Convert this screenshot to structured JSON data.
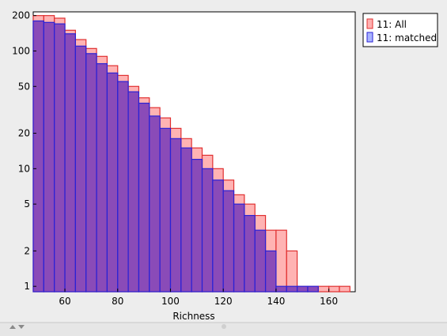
{
  "colors": {
    "all_fill": "#ff9a9a",
    "all_stroke": "#e03030",
    "matched_fill": "#7d3fb8",
    "matched_stroke": "#2a22d6",
    "legend_all_fill": "#ffb0b0",
    "legend_matched_fill": "#a9b4ff"
  },
  "chart_data": {
    "type": "bar",
    "subtype": "histogram-overlay",
    "xlabel": "Richness",
    "ylabel": "",
    "xlim": [
      48,
      170
    ],
    "ylim": [
      0.9,
      215
    ],
    "yscale": "log",
    "grid": false,
    "legend_position": "top-right",
    "x_ticks": [
      60,
      80,
      100,
      120,
      140,
      160
    ],
    "y_ticks": [
      1,
      2,
      5,
      10,
      20,
      50,
      100,
      200
    ],
    "x_tick_labels": [
      "60",
      "80",
      "100",
      "120",
      "140",
      "160"
    ],
    "y_tick_labels": [
      "1",
      "2",
      "5",
      "10",
      "20",
      "50",
      "100",
      "200"
    ],
    "bin_width": 4,
    "bin_starts": [
      48,
      52,
      56,
      60,
      64,
      68,
      72,
      76,
      80,
      84,
      88,
      92,
      96,
      100,
      104,
      108,
      112,
      116,
      120,
      124,
      128,
      132,
      136,
      140,
      144,
      148,
      152,
      156,
      160,
      164
    ],
    "series": [
      {
        "name": "11: All",
        "values": [
          200,
          200,
          190,
          150,
          125,
          105,
          90,
          75,
          62,
          50,
          40,
          33,
          27,
          22,
          18,
          15,
          13,
          10,
          8,
          6,
          5,
          4,
          3,
          3,
          2,
          1,
          1,
          1,
          1,
          1
        ]
      },
      {
        "name": "11: matched",
        "values": [
          180,
          175,
          170,
          140,
          110,
          95,
          78,
          65,
          55,
          45,
          36,
          28,
          22,
          18,
          15,
          12,
          10,
          8,
          6.5,
          5,
          4,
          3,
          2,
          1,
          1,
          1,
          1,
          0,
          0,
          0
        ]
      }
    ]
  }
}
